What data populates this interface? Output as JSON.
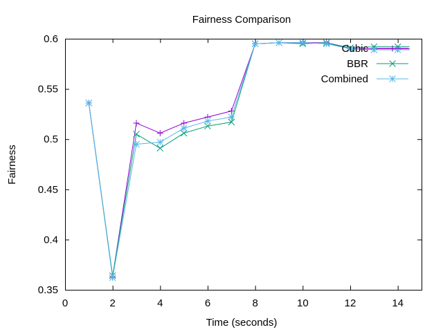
{
  "chart_data": {
    "type": "line",
    "title": "Fairness Comparison",
    "xlabel": "Time (seconds)",
    "ylabel": "Fairness",
    "xlim": [
      0,
      15
    ],
    "ylim": [
      0.35,
      0.6
    ],
    "xticks": [
      0,
      2,
      4,
      6,
      8,
      10,
      12,
      14
    ],
    "yticks": [
      0.35,
      0.4,
      0.45,
      0.5,
      0.55,
      0.6
    ],
    "ytick_labels": [
      "0.35",
      "0.4",
      "0.45",
      "0.5",
      "0.55",
      "0.6"
    ],
    "grid": false,
    "legend_position": "top-right",
    "x": [
      1,
      2,
      3,
      4,
      5,
      6,
      7,
      8,
      9,
      10,
      11,
      12,
      13,
      14
    ],
    "series": [
      {
        "name": "Cubic",
        "color": "#9400d3",
        "marker": "plus",
        "values": [
          0.536,
          0.363,
          0.516,
          0.506,
          0.516,
          0.522,
          0.528,
          0.595,
          0.596,
          0.596,
          0.596,
          0.59,
          0.59,
          0.59
        ]
      },
      {
        "name": "BBR",
        "color": "#009e73",
        "marker": "x",
        "values": [
          0.536,
          0.364,
          0.505,
          0.491,
          0.506,
          0.513,
          0.517,
          0.595,
          0.596,
          0.595,
          0.596,
          0.591,
          0.592,
          0.592
        ]
      },
      {
        "name": "Combined",
        "color": "#56b4e9",
        "marker": "star",
        "values": [
          0.536,
          0.362,
          0.495,
          0.497,
          0.511,
          0.518,
          0.522,
          0.595,
          0.596,
          0.596,
          0.595,
          0.59,
          0.589,
          0.589
        ]
      }
    ]
  }
}
